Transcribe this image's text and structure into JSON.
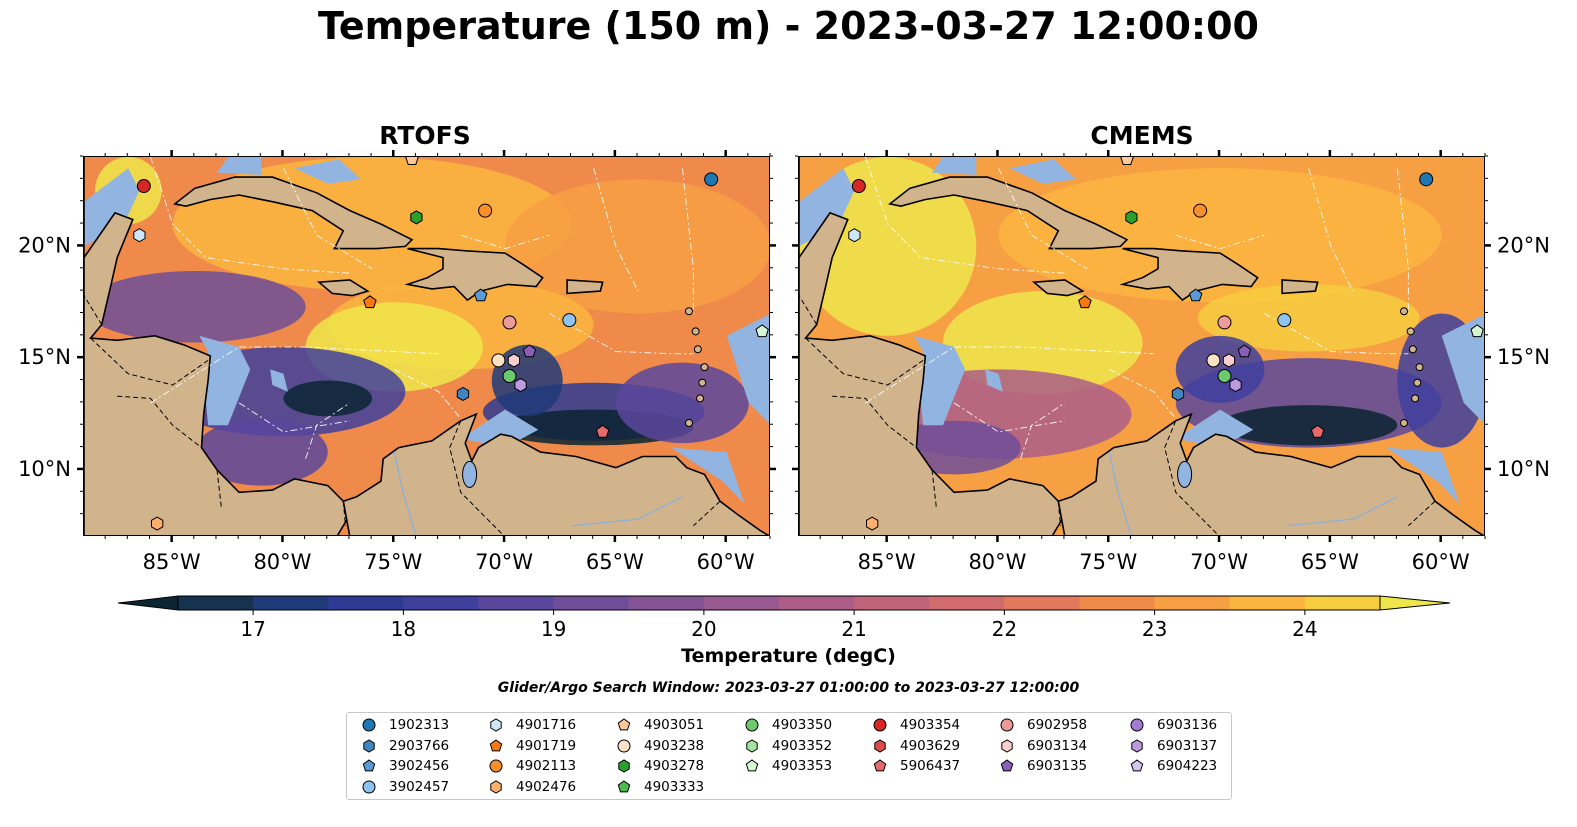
{
  "title": "Temperature (150 m) - 2023-03-27 12:00:00",
  "panels": [
    {
      "title": "RTOFS",
      "palette": {
        "shelf": "#e0a050",
        "hot": "#eccc3c"
      }
    },
    {
      "title": "CMEMS",
      "palette": {
        "shelf": "#e9e450",
        "hot": "#f3d94c"
      }
    }
  ],
  "map": {
    "lon_range": [
      -89,
      -58
    ],
    "lat_range": [
      7,
      24
    ],
    "lon_ticks": [
      "85°W",
      "80°W",
      "75°W",
      "70°W",
      "65°W",
      "60°W"
    ],
    "lat_ticks": [
      "20°N",
      "15°N",
      "10°N"
    ],
    "colors": {
      "land": "#d2b48c",
      "shallow": "#92b4e0",
      "deep_pacific": "#07212f",
      "coast": "#000000"
    }
  },
  "colorbar": {
    "label": "Temperature (degC)",
    "range": [
      16.5,
      24.5
    ],
    "ticks": [
      "17",
      "18",
      "19",
      "20",
      "21",
      "22",
      "23",
      "24"
    ],
    "colors": [
      "#0b2533",
      "#15324f",
      "#1f3a78",
      "#2e3a93",
      "#3f3f9e",
      "#5a479c",
      "#6f4d98",
      "#835394",
      "#985990",
      "#ac5e88",
      "#c0647c",
      "#d26c6c",
      "#e2795c",
      "#ef8a4b",
      "#f79f43",
      "#fbb53f",
      "#f7cc3f",
      "#eee64b"
    ]
  },
  "search_window": "Glider/Argo Search Window: 2023-03-27 01:00:00 to 2023-03-27 12:00:00",
  "legend": {
    "columns": [
      [
        {
          "id": "1902313",
          "color": "#1f77b4",
          "shape": "circle"
        },
        {
          "id": "2903766",
          "color": "#3f86c1",
          "shape": "hexagon"
        },
        {
          "id": "3902456",
          "color": "#5b9bd5",
          "shape": "pentagon"
        },
        {
          "id": "3902457",
          "color": "#8ec3ef",
          "shape": "circle"
        }
      ],
      [
        {
          "id": "4901716",
          "color": "#cde7f7",
          "shape": "hexagon"
        },
        {
          "id": "4901719",
          "color": "#f7790f",
          "shape": "pentagon"
        },
        {
          "id": "4902113",
          "color": "#f7902a",
          "shape": "circle"
        },
        {
          "id": "4902476",
          "color": "#fdb06b",
          "shape": "hexagon"
        }
      ],
      [
        {
          "id": "4903051",
          "color": "#fdc99a",
          "shape": "pentagon"
        },
        {
          "id": "4903238",
          "color": "#fde3c6",
          "shape": "circle"
        },
        {
          "id": "4903278",
          "color": "#2ca02c",
          "shape": "hexagon"
        },
        {
          "id": "4903333",
          "color": "#4dbb4d",
          "shape": "pentagon"
        }
      ],
      [
        {
          "id": "4903350",
          "color": "#6cca6c",
          "shape": "circle"
        },
        {
          "id": "4903352",
          "color": "#a4e4a0",
          "shape": "hexagon"
        },
        {
          "id": "4903353",
          "color": "#d6f5d2",
          "shape": "pentagon"
        }
      ],
      [
        {
          "id": "4903354",
          "color": "#d62728",
          "shape": "circle"
        },
        {
          "id": "4903629",
          "color": "#df4a4a",
          "shape": "hexagon"
        },
        {
          "id": "5906437",
          "color": "#e66a6a",
          "shape": "pentagon"
        }
      ],
      [
        {
          "id": "6902958",
          "color": "#ef9a9a",
          "shape": "circle"
        },
        {
          "id": "6903134",
          "color": "#f9cece",
          "shape": "hexagon"
        },
        {
          "id": "6903135",
          "color": "#8a5fb8",
          "shape": "pentagon"
        }
      ],
      [
        {
          "id": "6903136",
          "color": "#a37cd0",
          "shape": "circle"
        },
        {
          "id": "6903137",
          "color": "#bb9ae0",
          "shape": "hexagon"
        },
        {
          "id": "6904223",
          "color": "#d8c2f0",
          "shape": "pentagon"
        }
      ]
    ]
  },
  "floats": [
    {
      "id": "1902313",
      "lon": -60.7,
      "lat": 23.0
    },
    {
      "id": "2903766",
      "lon": -71.9,
      "lat": 13.4
    },
    {
      "id": "3902456",
      "lon": -71.1,
      "lat": 17.8
    },
    {
      "id": "3902457",
      "lon": -67.1,
      "lat": 16.7
    },
    {
      "id": "4901716",
      "lon": -86.5,
      "lat": 20.5
    },
    {
      "id": "4901719",
      "lon": -76.1,
      "lat": 17.5
    },
    {
      "id": "4902113",
      "lon": -70.9,
      "lat": 21.6
    },
    {
      "id": "4902476",
      "lon": -85.7,
      "lat": 7.6
    },
    {
      "id": "4903051",
      "lon": -74.2,
      "lat": 23.9
    },
    {
      "id": "4903238",
      "lon": -70.3,
      "lat": 14.9
    },
    {
      "id": "4903278",
      "lon": -74.0,
      "lat": 21.3
    },
    {
      "id": "4903350",
      "lon": -69.8,
      "lat": 14.2
    },
    {
      "id": "4903353",
      "lon": -58.4,
      "lat": 16.2
    },
    {
      "id": "4903354",
      "lon": -86.3,
      "lat": 22.7
    },
    {
      "id": "5906437",
      "lon": -65.6,
      "lat": 11.7
    },
    {
      "id": "6902958",
      "lon": -69.8,
      "lat": 16.6
    },
    {
      "id": "6903134",
      "lon": -69.6,
      "lat": 14.9
    },
    {
      "id": "6903135",
      "lon": -68.9,
      "lat": 15.3
    },
    {
      "id": "6903137",
      "lon": -69.3,
      "lat": 13.8
    }
  ]
}
